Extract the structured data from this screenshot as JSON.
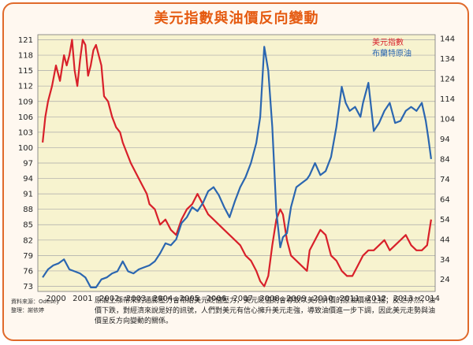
{
  "title": "美元指數與油價反向變動",
  "note": "原油上漲帶來的通膨壓力會帶給美元貶值壓力，美元貶值則會導致以美元計價的原油價格上揚；反之亦然，油價下跌，對經濟來說是好的訊號，人們對美元有信心擁升美元走強，導致油價進一步下調，因此美元走勢與油價呈反方向變動的關係。",
  "source": {
    "line1": "資料來源：Odesey",
    "line2": "整理：謝依婷"
  },
  "chart_data": {
    "type": "line",
    "title": "美元指數與油價反向變動",
    "x_ticks": [
      "2000",
      "2001",
      "2002",
      "2003",
      "2004",
      "2005",
      "2006",
      "2007",
      "2008",
      "2009",
      "2010",
      "2011",
      "2012",
      "2013",
      "2014"
    ],
    "y_left_ticks": [
      73,
      76,
      79,
      82,
      85,
      88,
      91,
      94,
      97,
      100,
      103,
      106,
      109,
      112,
      115,
      118,
      121
    ],
    "y_left_lim": [
      72,
      122
    ],
    "y_right_ticks": [
      24,
      34,
      44,
      54,
      64,
      74,
      84,
      94,
      104,
      114,
      124,
      134,
      144
    ],
    "y_right_lim": [
      18,
      146
    ],
    "grid": true,
    "legend_position": "top-right",
    "series": [
      {
        "name": "美元指數",
        "axis": "left",
        "color": "#d8202a",
        "x": [
          2000.0,
          2000.1,
          2000.2,
          2000.35,
          2000.5,
          2000.65,
          2000.8,
          2000.9,
          2001.0,
          2001.1,
          2001.2,
          2001.3,
          2001.4,
          2001.5,
          2001.6,
          2001.7,
          2001.8,
          2001.9,
          2002.0,
          2002.1,
          2002.2,
          2002.3,
          2002.45,
          2002.6,
          2002.75,
          2002.9,
          2003.0,
          2003.15,
          2003.3,
          2003.5,
          2003.7,
          2003.9,
          2004.0,
          2004.2,
          2004.4,
          2004.6,
          2004.8,
          2005.0,
          2005.2,
          2005.4,
          2005.6,
          2005.8,
          2006.0,
          2006.2,
          2006.4,
          2006.6,
          2006.8,
          2007.0,
          2007.2,
          2007.4,
          2007.6,
          2007.8,
          2008.0,
          2008.15,
          2008.3,
          2008.45,
          2008.6,
          2008.75,
          2008.9,
          2009.0,
          2009.15,
          2009.3,
          2009.5,
          2009.7,
          2009.9,
          2010.0,
          2010.2,
          2010.4,
          2010.6,
          2010.8,
          2011.0,
          2011.2,
          2011.4,
          2011.6,
          2011.8,
          2012.0,
          2012.2,
          2012.4,
          2012.6,
          2012.8,
          2013.0,
          2013.2,
          2013.4,
          2013.6,
          2013.8,
          2014.0,
          2014.2,
          2014.4,
          2014.55
        ],
        "values": [
          101,
          106,
          109,
          112,
          116,
          113,
          118,
          116,
          118,
          121,
          115,
          112,
          117,
          121,
          120,
          114,
          116,
          119,
          120,
          118,
          116,
          110,
          109,
          106,
          104,
          103,
          101,
          99,
          97,
          95,
          93,
          91,
          89,
          88,
          85,
          86,
          84,
          83,
          86,
          88,
          89,
          91,
          89,
          87,
          86,
          85,
          84,
          83,
          82,
          81,
          79,
          78,
          76,
          74,
          73,
          75,
          81,
          86,
          88,
          87,
          82,
          79,
          78,
          77,
          76,
          80,
          82,
          84,
          83,
          79,
          78,
          76,
          75,
          75,
          77,
          79,
          80,
          80,
          81,
          82,
          80,
          81,
          82,
          83,
          81,
          80,
          80,
          81,
          86
        ]
      },
      {
        "name": "布蘭特原油",
        "axis": "right",
        "color": "#2b66b0",
        "x": [
          2000.0,
          2000.2,
          2000.4,
          2000.6,
          2000.8,
          2001.0,
          2001.2,
          2001.4,
          2001.6,
          2001.8,
          2002.0,
          2002.2,
          2002.4,
          2002.6,
          2002.8,
          2003.0,
          2003.2,
          2003.4,
          2003.6,
          2003.8,
          2004.0,
          2004.2,
          2004.4,
          2004.6,
          2004.8,
          2005.0,
          2005.2,
          2005.4,
          2005.6,
          2005.8,
          2006.0,
          2006.2,
          2006.4,
          2006.6,
          2006.8,
          2007.0,
          2007.2,
          2007.4,
          2007.6,
          2007.8,
          2008.0,
          2008.15,
          2008.3,
          2008.45,
          2008.6,
          2008.75,
          2008.9,
          2009.0,
          2009.15,
          2009.3,
          2009.5,
          2009.7,
          2009.9,
          2010.0,
          2010.2,
          2010.4,
          2010.6,
          2010.8,
          2011.0,
          2011.2,
          2011.35,
          2011.5,
          2011.7,
          2011.9,
          2012.0,
          2012.2,
          2012.4,
          2012.6,
          2012.8,
          2013.0,
          2013.2,
          2013.4,
          2013.6,
          2013.8,
          2014.0,
          2014.2,
          2014.35,
          2014.45,
          2014.55
        ],
        "values": [
          25,
          29,
          31,
          32,
          34,
          29,
          28,
          27,
          25,
          20,
          20,
          24,
          25,
          27,
          28,
          33,
          28,
          27,
          29,
          30,
          31,
          33,
          37,
          42,
          41,
          44,
          52,
          55,
          60,
          58,
          62,
          68,
          70,
          66,
          60,
          55,
          63,
          70,
          75,
          82,
          92,
          105,
          140,
          128,
          100,
          58,
          40,
          45,
          47,
          60,
          70,
          72,
          74,
          76,
          82,
          76,
          78,
          85,
          100,
          120,
          112,
          108,
          110,
          105,
          112,
          122,
          98,
          102,
          108,
          112,
          102,
          103,
          108,
          110,
          108,
          112,
          103,
          94,
          84
        ]
      }
    ]
  }
}
